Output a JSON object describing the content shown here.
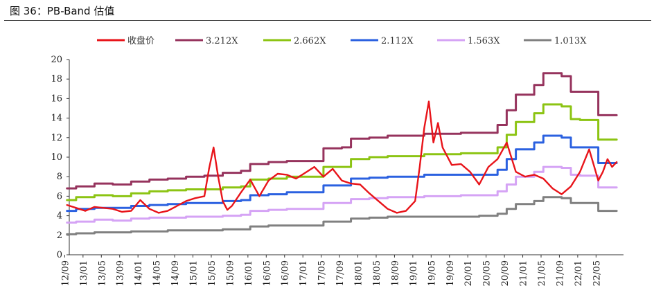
{
  "figure_title": "图 36：PB-Band 估值",
  "chart_data": {
    "type": "line",
    "title": "",
    "ylim": [
      0,
      20
    ],
    "yticks": [
      0,
      2,
      4,
      6,
      8,
      10,
      12,
      14,
      16,
      18,
      20
    ],
    "xticks": [
      "12/09",
      "13/01",
      "13/05",
      "13/09",
      "14/01",
      "14/05",
      "14/09",
      "15/01",
      "15/05",
      "15/09",
      "16/01",
      "16/05",
      "16/09",
      "17/01",
      "17/05",
      "17/09",
      "18/01",
      "18/05",
      "18/09",
      "19/01",
      "19/05",
      "19/09",
      "20/01",
      "20/05",
      "20/09",
      "21/01",
      "21/05",
      "21/09",
      "22/01",
      "22/05"
    ],
    "legend_position": "top",
    "grid": false,
    "series": [
      {
        "name": "收盘价",
        "color": "#e8141a",
        "points": [
          [
            "12/09",
            5.1
          ],
          [
            "12/11",
            4.8
          ],
          [
            "13/01",
            4.5
          ],
          [
            "13/03",
            4.9
          ],
          [
            "13/05",
            4.8
          ],
          [
            "13/07",
            4.7
          ],
          [
            "13/09",
            4.4
          ],
          [
            "13/11",
            4.5
          ],
          [
            "14/01",
            5.6
          ],
          [
            "14/03",
            4.7
          ],
          [
            "14/05",
            4.3
          ],
          [
            "14/07",
            4.5
          ],
          [
            "14/09",
            5.0
          ],
          [
            "14/11",
            5.5
          ],
          [
            "15/01",
            5.8
          ],
          [
            "15/03",
            6.0
          ],
          [
            "15/04",
            8.8
          ],
          [
            "15/05",
            11.0
          ],
          [
            "15/06",
            8.0
          ],
          [
            "15/07",
            5.5
          ],
          [
            "15/08",
            4.6
          ],
          [
            "15/09",
            5.0
          ],
          [
            "15/11",
            6.4
          ],
          [
            "16/01",
            7.7
          ],
          [
            "16/03",
            6.0
          ],
          [
            "16/05",
            7.6
          ],
          [
            "16/07",
            8.3
          ],
          [
            "16/09",
            8.2
          ],
          [
            "16/11",
            7.8
          ],
          [
            "17/01",
            8.4
          ],
          [
            "17/03",
            9.0
          ],
          [
            "17/05",
            8.0
          ],
          [
            "17/07",
            8.8
          ],
          [
            "17/09",
            7.6
          ],
          [
            "17/11",
            7.3
          ],
          [
            "18/01",
            7.2
          ],
          [
            "18/03",
            6.3
          ],
          [
            "18/05",
            5.5
          ],
          [
            "18/07",
            4.7
          ],
          [
            "18/09",
            4.3
          ],
          [
            "18/11",
            4.5
          ],
          [
            "19/01",
            5.5
          ],
          [
            "19/02",
            9.0
          ],
          [
            "19/03",
            13.0
          ],
          [
            "19/04",
            15.7
          ],
          [
            "19/05",
            11.5
          ],
          [
            "19/06",
            13.5
          ],
          [
            "19/07",
            11.0
          ],
          [
            "19/09",
            9.2
          ],
          [
            "19/11",
            9.3
          ],
          [
            "20/01",
            8.5
          ],
          [
            "20/03",
            7.2
          ],
          [
            "20/05",
            9.0
          ],
          [
            "20/07",
            9.8
          ],
          [
            "20/09",
            11.5
          ],
          [
            "20/11",
            8.5
          ],
          [
            "21/01",
            8.0
          ],
          [
            "21/03",
            8.2
          ],
          [
            "21/05",
            7.8
          ],
          [
            "21/07",
            6.8
          ],
          [
            "21/09",
            6.2
          ],
          [
            "21/11",
            7.0
          ],
          [
            "22/01",
            8.5
          ],
          [
            "22/03",
            10.8
          ],
          [
            "22/05",
            7.6
          ],
          [
            "22/06",
            8.5
          ],
          [
            "22/07",
            9.8
          ],
          [
            "22/08",
            9.0
          ],
          [
            "22/09",
            9.5
          ]
        ]
      },
      {
        "name": "3.212X",
        "color": "#96335d",
        "points": [
          [
            "12/09",
            6.8
          ],
          [
            "12/11",
            7.0
          ],
          [
            "13/03",
            7.3
          ],
          [
            "13/07",
            7.2
          ],
          [
            "13/11",
            7.5
          ],
          [
            "14/03",
            7.7
          ],
          [
            "14/07",
            7.8
          ],
          [
            "14/11",
            8.0
          ],
          [
            "15/03",
            8.1
          ],
          [
            "15/07",
            8.4
          ],
          [
            "15/11",
            8.6
          ],
          [
            "16/01",
            9.3
          ],
          [
            "16/05",
            9.5
          ],
          [
            "16/09",
            9.6
          ],
          [
            "17/01",
            9.6
          ],
          [
            "17/05",
            10.9
          ],
          [
            "17/09",
            11.0
          ],
          [
            "17/11",
            11.9
          ],
          [
            "18/03",
            12.0
          ],
          [
            "18/07",
            12.2
          ],
          [
            "18/11",
            12.2
          ],
          [
            "19/03",
            12.4
          ],
          [
            "19/07",
            12.4
          ],
          [
            "19/11",
            12.5
          ],
          [
            "20/03",
            12.5
          ],
          [
            "20/07",
            13.3
          ],
          [
            "20/09",
            14.8
          ],
          [
            "20/11",
            16.4
          ],
          [
            "21/03",
            17.4
          ],
          [
            "21/05",
            18.6
          ],
          [
            "21/09",
            18.3
          ],
          [
            "21/11",
            16.7
          ],
          [
            "22/01",
            16.7
          ],
          [
            "22/05",
            14.3
          ],
          [
            "22/09",
            14.3
          ]
        ]
      },
      {
        "name": "2.662X",
        "color": "#8cc413",
        "points": [
          [
            "12/09",
            5.6
          ],
          [
            "12/11",
            5.9
          ],
          [
            "13/03",
            6.1
          ],
          [
            "13/07",
            6.0
          ],
          [
            "13/11",
            6.3
          ],
          [
            "14/03",
            6.5
          ],
          [
            "14/07",
            6.6
          ],
          [
            "14/11",
            6.7
          ],
          [
            "15/03",
            6.7
          ],
          [
            "15/07",
            6.9
          ],
          [
            "15/11",
            7.0
          ],
          [
            "16/01",
            7.7
          ],
          [
            "16/05",
            7.8
          ],
          [
            "16/09",
            8.0
          ],
          [
            "17/01",
            8.0
          ],
          [
            "17/05",
            9.0
          ],
          [
            "17/09",
            9.0
          ],
          [
            "17/11",
            9.8
          ],
          [
            "18/03",
            10.0
          ],
          [
            "18/07",
            10.1
          ],
          [
            "18/11",
            10.1
          ],
          [
            "19/03",
            10.3
          ],
          [
            "19/07",
            10.3
          ],
          [
            "19/11",
            10.4
          ],
          [
            "20/03",
            10.4
          ],
          [
            "20/07",
            11.0
          ],
          [
            "20/09",
            12.3
          ],
          [
            "20/11",
            13.6
          ],
          [
            "21/03",
            14.5
          ],
          [
            "21/05",
            15.4
          ],
          [
            "21/09",
            15.2
          ],
          [
            "21/11",
            13.9
          ],
          [
            "22/01",
            13.8
          ],
          [
            "22/05",
            11.8
          ],
          [
            "22/09",
            11.8
          ]
        ]
      },
      {
        "name": "2.112X",
        "color": "#2b61e0",
        "points": [
          [
            "12/09",
            4.5
          ],
          [
            "12/11",
            4.7
          ],
          [
            "13/03",
            4.8
          ],
          [
            "13/07",
            4.8
          ],
          [
            "13/11",
            5.0
          ],
          [
            "14/03",
            5.1
          ],
          [
            "14/07",
            5.2
          ],
          [
            "14/11",
            5.3
          ],
          [
            "15/03",
            5.3
          ],
          [
            "15/07",
            5.5
          ],
          [
            "15/11",
            5.6
          ],
          [
            "16/01",
            6.1
          ],
          [
            "16/05",
            6.2
          ],
          [
            "16/09",
            6.4
          ],
          [
            "17/01",
            6.4
          ],
          [
            "17/05",
            7.1
          ],
          [
            "17/09",
            7.1
          ],
          [
            "17/11",
            7.8
          ],
          [
            "18/03",
            7.9
          ],
          [
            "18/07",
            8.0
          ],
          [
            "18/11",
            8.0
          ],
          [
            "19/03",
            8.2
          ],
          [
            "19/07",
            8.2
          ],
          [
            "19/11",
            8.2
          ],
          [
            "20/03",
            8.2
          ],
          [
            "20/07",
            8.7
          ],
          [
            "20/09",
            9.8
          ],
          [
            "20/11",
            10.8
          ],
          [
            "21/03",
            11.5
          ],
          [
            "21/05",
            12.2
          ],
          [
            "21/09",
            12.0
          ],
          [
            "21/11",
            11.0
          ],
          [
            "22/01",
            11.0
          ],
          [
            "22/05",
            9.4
          ],
          [
            "22/09",
            9.4
          ]
        ]
      },
      {
        "name": "1.563X",
        "color": "#d5a3f5",
        "points": [
          [
            "12/09",
            3.3
          ],
          [
            "12/11",
            3.4
          ],
          [
            "13/03",
            3.6
          ],
          [
            "13/07",
            3.5
          ],
          [
            "13/11",
            3.7
          ],
          [
            "14/03",
            3.8
          ],
          [
            "14/07",
            3.8
          ],
          [
            "14/11",
            3.9
          ],
          [
            "15/03",
            3.9
          ],
          [
            "15/07",
            4.0
          ],
          [
            "15/11",
            4.1
          ],
          [
            "16/01",
            4.5
          ],
          [
            "16/05",
            4.6
          ],
          [
            "16/09",
            4.7
          ],
          [
            "17/01",
            4.7
          ],
          [
            "17/05",
            5.3
          ],
          [
            "17/09",
            5.3
          ],
          [
            "17/11",
            5.7
          ],
          [
            "18/03",
            5.8
          ],
          [
            "18/07",
            5.9
          ],
          [
            "18/11",
            5.9
          ],
          [
            "19/03",
            6.0
          ],
          [
            "19/07",
            6.0
          ],
          [
            "19/11",
            6.1
          ],
          [
            "20/03",
            6.1
          ],
          [
            "20/07",
            6.5
          ],
          [
            "20/09",
            7.2
          ],
          [
            "20/11",
            8.0
          ],
          [
            "21/03",
            8.5
          ],
          [
            "21/05",
            9.0
          ],
          [
            "21/09",
            8.9
          ],
          [
            "21/11",
            8.2
          ],
          [
            "22/01",
            8.1
          ],
          [
            "22/05",
            6.9
          ],
          [
            "22/09",
            6.9
          ]
        ]
      },
      {
        "name": "1.013X",
        "color": "#808080",
        "points": [
          [
            "12/09",
            2.1
          ],
          [
            "12/11",
            2.2
          ],
          [
            "13/03",
            2.3
          ],
          [
            "13/07",
            2.3
          ],
          [
            "13/11",
            2.4
          ],
          [
            "14/03",
            2.4
          ],
          [
            "14/07",
            2.5
          ],
          [
            "14/11",
            2.5
          ],
          [
            "15/03",
            2.5
          ],
          [
            "15/07",
            2.6
          ],
          [
            "15/11",
            2.6
          ],
          [
            "16/01",
            2.9
          ],
          [
            "16/05",
            3.0
          ],
          [
            "16/09",
            3.0
          ],
          [
            "17/01",
            3.0
          ],
          [
            "17/05",
            3.4
          ],
          [
            "17/09",
            3.4
          ],
          [
            "17/11",
            3.7
          ],
          [
            "18/03",
            3.8
          ],
          [
            "18/07",
            3.9
          ],
          [
            "18/11",
            3.9
          ],
          [
            "19/03",
            3.9
          ],
          [
            "19/07",
            3.9
          ],
          [
            "19/11",
            3.9
          ],
          [
            "20/03",
            4.0
          ],
          [
            "20/07",
            4.2
          ],
          [
            "20/09",
            4.7
          ],
          [
            "20/11",
            5.2
          ],
          [
            "21/03",
            5.5
          ],
          [
            "21/05",
            5.9
          ],
          [
            "21/09",
            5.8
          ],
          [
            "21/11",
            5.3
          ],
          [
            "22/01",
            5.3
          ],
          [
            "22/05",
            4.5
          ],
          [
            "22/09",
            4.5
          ]
        ]
      }
    ]
  }
}
